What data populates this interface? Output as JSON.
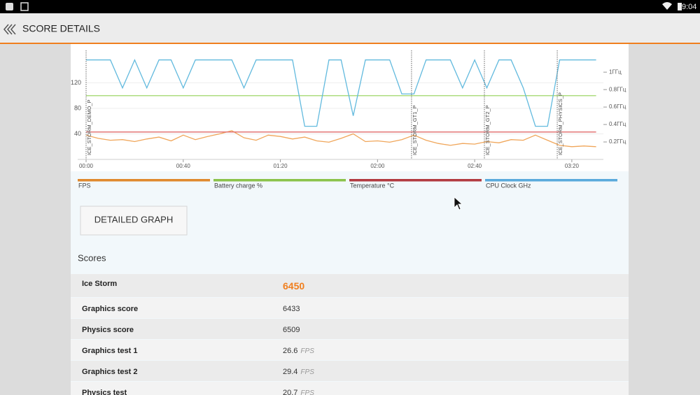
{
  "status_bar": {
    "time": "9:04"
  },
  "app_bar": {
    "title": "SCORE DETAILS"
  },
  "chart_data": {
    "type": "line",
    "x": [
      0,
      5,
      10,
      15,
      20,
      25,
      30,
      35,
      40,
      45,
      50,
      55,
      60,
      65,
      70,
      75,
      80,
      85,
      90,
      95,
      100,
      105,
      110,
      115,
      120,
      125,
      130,
      135,
      140,
      145,
      150,
      155,
      160,
      165,
      170,
      175,
      180,
      185,
      190,
      195,
      200,
      205,
      210
    ],
    "xlim": [
      0,
      213
    ],
    "xticks": [
      {
        "value": 0,
        "label": "00:00"
      },
      {
        "value": 40,
        "label": "00:40"
      },
      {
        "value": 80,
        "label": "01:20"
      },
      {
        "value": 120,
        "label": "02:00"
      },
      {
        "value": 160,
        "label": "02:40"
      },
      {
        "value": 200,
        "label": "03:20"
      }
    ],
    "ylim": [
      0,
      171
    ],
    "yticks": [
      40,
      80,
      120
    ],
    "y2lim": [
      0,
      1.25
    ],
    "y2ticks": [
      {
        "value": 0.2,
        "label": "0.2ГГц"
      },
      {
        "value": 0.4,
        "label": "0.4ГГц"
      },
      {
        "value": 0.6,
        "label": "0.6ГГц"
      },
      {
        "value": 0.8,
        "label": "0.8ГГц"
      },
      {
        "value": 1,
        "label": "1ГГц"
      }
    ],
    "grid": true,
    "markers": [
      {
        "x": 0,
        "label": "ICE_STORM_DEMO_P"
      },
      {
        "x": 134,
        "label": "ICE_STORM_GT1_P"
      },
      {
        "x": 164,
        "label": "ICE_STORM_GT2_P"
      },
      {
        "x": 194,
        "label": "ICE_STORM_PHYSICS_P"
      }
    ],
    "series": [
      {
        "name": "FPS",
        "color": "#e0892e",
        "line_color": "#f0a65a",
        "values": [
          38,
          33,
          30,
          31,
          28,
          32,
          35,
          29,
          38,
          31,
          36,
          40,
          45,
          34,
          30,
          38,
          36,
          32,
          35,
          29,
          27,
          33,
          40,
          28,
          29,
          27,
          31,
          38,
          30,
          25,
          22,
          25,
          24,
          28,
          26,
          31,
          30,
          38,
          30,
          22,
          20,
          21,
          20
        ]
      },
      {
        "name": "Battery charge %",
        "color": "#8bc34a",
        "line_color": "#a6d873",
        "values": [
          100,
          100,
          100,
          100,
          100,
          100,
          100,
          100,
          100,
          100,
          100,
          100,
          100,
          100,
          100,
          100,
          100,
          100,
          100,
          100,
          100,
          100,
          100,
          100,
          100,
          100,
          100,
          100,
          100,
          100,
          100,
          100,
          100,
          100,
          100,
          100,
          100,
          100,
          100,
          100,
          100,
          100,
          100
        ]
      },
      {
        "name": "Temperature °C",
        "color": "#b23a40",
        "line_color": "#e06a6a",
        "values": [
          43,
          43,
          43,
          43,
          43,
          43,
          43,
          43,
          43,
          43,
          43,
          43,
          43,
          43,
          43,
          43,
          43,
          43,
          43,
          43,
          43,
          43,
          43,
          43,
          43,
          43,
          43,
          43,
          43,
          43,
          43,
          43,
          43,
          43,
          43,
          43,
          43,
          43,
          43,
          43,
          43,
          43,
          43
        ]
      },
      {
        "name": "CPU Clock GHz",
        "color": "#5aaadc",
        "line_color": "#62bade",
        "axis": "y2",
        "values": [
          1.14,
          1.14,
          1.14,
          0.82,
          1.14,
          0.82,
          1.14,
          1.14,
          0.82,
          1.14,
          1.14,
          1.14,
          1.14,
          0.82,
          1.14,
          1.14,
          1.14,
          1.14,
          0.38,
          0.38,
          1.14,
          1.14,
          0.5,
          1.14,
          1.14,
          1.14,
          0.75,
          0.75,
          1.14,
          1.14,
          1.14,
          0.82,
          1.14,
          0.82,
          1.14,
          1.14,
          0.82,
          0.38,
          0.38,
          1.14,
          1.14,
          1.14,
          1.14
        ]
      }
    ]
  },
  "button": {
    "label": "DETAILED GRAPH"
  },
  "scores": {
    "title": "Scores",
    "rows": [
      {
        "name": "Ice Storm",
        "value": 6450,
        "value_color": "#f07f1e"
      },
      {
        "name": "Graphics score",
        "value": 6433
      },
      {
        "name": "Physics score",
        "value": 6509
      },
      {
        "name": "Graphics test 1",
        "value": 26.6,
        "unit": "FPS"
      },
      {
        "name": "Graphics test 2",
        "value": 29.4,
        "unit": "FPS"
      },
      {
        "name": "Physics test",
        "value": 20.7,
        "unit": "FPS"
      }
    ]
  }
}
